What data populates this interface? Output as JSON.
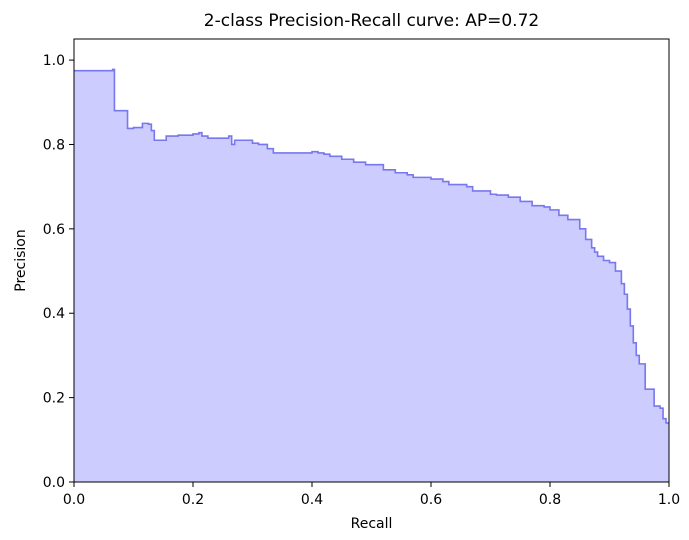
{
  "chart_data": {
    "type": "area",
    "title": "2-class Precision-Recall curve: AP=0.72",
    "xlabel": "Recall",
    "ylabel": "Precision",
    "xlim": [
      0.0,
      1.0
    ],
    "ylim": [
      0.0,
      1.05
    ],
    "xticks": [
      0.0,
      0.2,
      0.4,
      0.6,
      0.8,
      1.0
    ],
    "xtick_labels": [
      "0.0",
      "0.2",
      "0.4",
      "0.6",
      "0.8",
      "1.0"
    ],
    "yticks": [
      0.0,
      0.2,
      0.4,
      0.6,
      0.8,
      1.0
    ],
    "ytick_labels": [
      "0.0",
      "0.2",
      "0.4",
      "0.6",
      "0.8",
      "1.0"
    ],
    "grid": false,
    "step": "post",
    "colors": {
      "line": "#7777ee",
      "fill": "#ccccff"
    },
    "series": [
      {
        "x": [
          0.0,
          0.065,
          0.065,
          0.068,
          0.068,
          0.09,
          0.09,
          0.1,
          0.1,
          0.115,
          0.115,
          0.125,
          0.125,
          0.13,
          0.13,
          0.135,
          0.135,
          0.155,
          0.155,
          0.175,
          0.175,
          0.2,
          0.2,
          0.21,
          0.21,
          0.215,
          0.215,
          0.225,
          0.225,
          0.26,
          0.26,
          0.265,
          0.265,
          0.27,
          0.27,
          0.3,
          0.3,
          0.31,
          0.31,
          0.325,
          0.325,
          0.335,
          0.335,
          0.4,
          0.4,
          0.41,
          0.41,
          0.42,
          0.42,
          0.43,
          0.43,
          0.45,
          0.45,
          0.47,
          0.47,
          0.49,
          0.49,
          0.52,
          0.52,
          0.54,
          0.54,
          0.56,
          0.56,
          0.57,
          0.57,
          0.6,
          0.6,
          0.62,
          0.62,
          0.63,
          0.63,
          0.66,
          0.66,
          0.67,
          0.67,
          0.7,
          0.7,
          0.71,
          0.71,
          0.73,
          0.73,
          0.75,
          0.75,
          0.77,
          0.77,
          0.79,
          0.79,
          0.8,
          0.8,
          0.815,
          0.815,
          0.83,
          0.83,
          0.85,
          0.85,
          0.86,
          0.86,
          0.87,
          0.87,
          0.875,
          0.875,
          0.88,
          0.88,
          0.89,
          0.89,
          0.9,
          0.9,
          0.91,
          0.91,
          0.92,
          0.92,
          0.925,
          0.925,
          0.93,
          0.93,
          0.935,
          0.935,
          0.94,
          0.94,
          0.945,
          0.945,
          0.95,
          0.95,
          0.96,
          0.96,
          0.975,
          0.975,
          0.985,
          0.985,
          0.99,
          0.99,
          0.995,
          0.995,
          1.0
        ],
        "y": [
          0.975,
          0.975,
          0.978,
          0.978,
          0.88,
          0.88,
          0.838,
          0.838,
          0.84,
          0.84,
          0.85,
          0.85,
          0.848,
          0.848,
          0.833,
          0.833,
          0.81,
          0.81,
          0.82,
          0.82,
          0.822,
          0.822,
          0.825,
          0.825,
          0.828,
          0.828,
          0.82,
          0.82,
          0.815,
          0.815,
          0.82,
          0.82,
          0.8,
          0.8,
          0.81,
          0.81,
          0.803,
          0.803,
          0.8,
          0.8,
          0.79,
          0.79,
          0.78,
          0.78,
          0.783,
          0.783,
          0.78,
          0.78,
          0.777,
          0.777,
          0.772,
          0.772,
          0.765,
          0.765,
          0.758,
          0.758,
          0.752,
          0.752,
          0.74,
          0.74,
          0.733,
          0.733,
          0.728,
          0.728,
          0.722,
          0.722,
          0.718,
          0.718,
          0.712,
          0.712,
          0.705,
          0.705,
          0.7,
          0.7,
          0.69,
          0.69,
          0.682,
          0.682,
          0.68,
          0.68,
          0.675,
          0.675,
          0.665,
          0.665,
          0.655,
          0.655,
          0.652,
          0.652,
          0.645,
          0.645,
          0.632,
          0.632,
          0.622,
          0.622,
          0.6,
          0.6,
          0.575,
          0.575,
          0.555,
          0.555,
          0.545,
          0.545,
          0.535,
          0.535,
          0.525,
          0.525,
          0.52,
          0.52,
          0.5,
          0.5,
          0.47,
          0.47,
          0.445,
          0.445,
          0.41,
          0.41,
          0.37,
          0.37,
          0.33,
          0.33,
          0.3,
          0.3,
          0.28,
          0.28,
          0.22,
          0.22,
          0.18,
          0.18,
          0.175,
          0.175,
          0.15,
          0.15,
          0.14,
          0.14
        ]
      }
    ]
  }
}
